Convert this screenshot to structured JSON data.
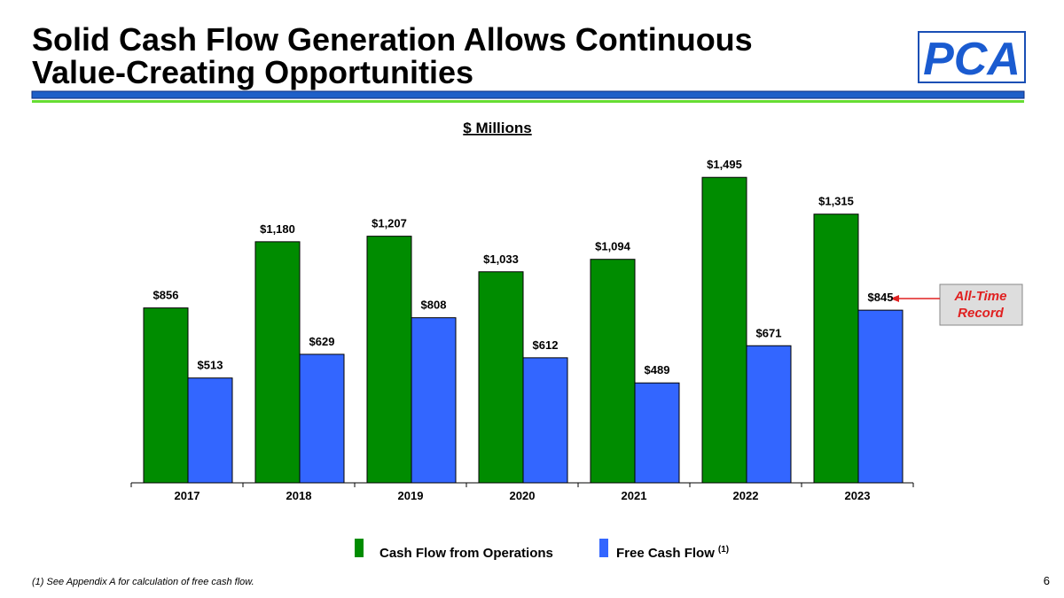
{
  "chart_data": {
    "type": "bar",
    "title": [
      "Solid Cash Flow Generation Allows Continuous",
      "Value-Creating Opportunities"
    ],
    "subtitle": "$ Millions",
    "logo": "PCA",
    "categories": [
      "2017",
      "2018",
      "2019",
      "2020",
      "2021",
      "2022",
      "2023"
    ],
    "series": [
      {
        "name": "Cash Flow from Operations",
        "color": "#008c00",
        "values": [
          856,
          1180,
          1207,
          1033,
          1094,
          1495,
          1315
        ],
        "value_labels": [
          "$856",
          "$1,180",
          "$1,207",
          "$1,033",
          "$1,094",
          "$1,495",
          "$1,315"
        ]
      },
      {
        "name": "Free Cash Flow",
        "name_note": "(1)",
        "color": "#3366ff",
        "values": [
          513,
          629,
          808,
          612,
          489,
          671,
          845
        ],
        "value_labels": [
          "$513",
          "$629",
          "$808",
          "$612",
          "$489",
          "$671",
          "$845"
        ]
      }
    ],
    "ylim": [
      0,
      1600
    ],
    "annotation": [
      "All-Time",
      "Record"
    ],
    "footnote": "(1)  See Appendix A for calculation of free cash flow.",
    "page_number": "6"
  }
}
